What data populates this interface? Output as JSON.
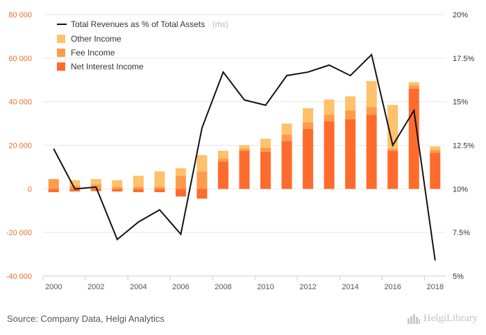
{
  "colors": {
    "net_interest_income": "#ff6b2d",
    "fee_income": "#ff9c4a",
    "other_income": "#ffc16b",
    "line": "#111111",
    "left_axis_text": "#f36a27",
    "right_axis_text": "#333333",
    "grid": "#e7e7e7"
  },
  "source_text": "Source: Company Data, Helgi Analytics",
  "brand_text": "HelgiLibrary",
  "chart_data": {
    "type": "bar",
    "title": "",
    "xlabel": "",
    "ylabel": "",
    "ylabel_right": "",
    "categories": [
      "2000",
      "2001",
      "2002",
      "2003",
      "2004",
      "2005",
      "2006",
      "2007",
      "2008",
      "2009",
      "2010",
      "2011",
      "2012",
      "2013",
      "2014",
      "2015",
      "2016",
      "2017",
      "2018"
    ],
    "ylim": [
      -40000,
      80000
    ],
    "y_ticks": [
      -40000,
      -20000,
      0,
      20000,
      40000,
      60000,
      80000
    ],
    "y_tick_labels": [
      "-40 000",
      "-20 000",
      "0",
      "20 000",
      "40 000",
      "60 000",
      "80 000"
    ],
    "y2lim": [
      5,
      20
    ],
    "y2_ticks": [
      5,
      7.5,
      10,
      12.5,
      15,
      17.5,
      20
    ],
    "y2_tick_labels": [
      "5%",
      "7.5%",
      "10%",
      "12.5%",
      "15%",
      "17.5%",
      "20%"
    ],
    "x_tick_labels": [
      "2000",
      "2002",
      "2004",
      "2006",
      "2008",
      "2010",
      "2012",
      "2014",
      "2016",
      "2018"
    ],
    "grid": true,
    "legend_position": "top-left",
    "series": [
      {
        "name": "Net Interest Income",
        "stack": "revenue",
        "axis": "left",
        "values": [
          -1500,
          -1200,
          -1000,
          -1200,
          -1500,
          -1500,
          -3500,
          -4500,
          12500,
          17500,
          17000,
          22000,
          27500,
          31000,
          32000,
          34000,
          17500,
          46000,
          16500
        ]
      },
      {
        "name": "Fee Income",
        "stack": "revenue",
        "axis": "left",
        "values": [
          4500,
          1500,
          2000,
          1000,
          1000,
          1000,
          6000,
          8000,
          1500,
          1000,
          2000,
          3000,
          3000,
          3000,
          4000,
          3500,
          1000,
          1500,
          1500
        ]
      },
      {
        "name": "Other Income",
        "stack": "revenue",
        "axis": "left",
        "values": [
          0,
          2500,
          2500,
          3000,
          5000,
          7000,
          3500,
          7500,
          3500,
          1500,
          4000,
          5000,
          6500,
          7000,
          6500,
          12000,
          20000,
          1500,
          1500
        ]
      },
      {
        "name": "Total Revenues as % of Total Assets",
        "name_suffix": "(rhs)",
        "type": "line",
        "axis": "right",
        "values": [
          12.3,
          10.0,
          10.1,
          7.1,
          8.1,
          8.8,
          7.4,
          13.5,
          16.7,
          15.1,
          14.8,
          16.5,
          16.7,
          17.1,
          16.5,
          17.7,
          12.5,
          14.5,
          5.9
        ]
      }
    ]
  }
}
